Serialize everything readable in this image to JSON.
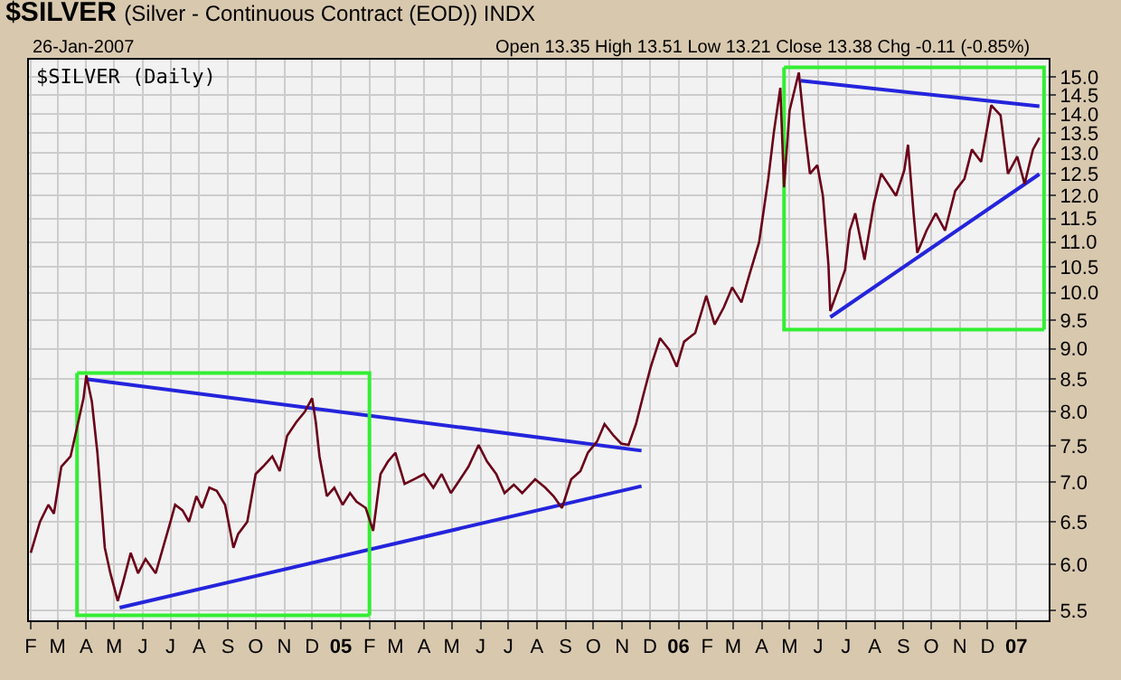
{
  "chart_data": {
    "type": "line",
    "title": "$SILVER",
    "subtitle": "(Silver - Continuous Contract (EOD)) INDX",
    "annotations": [
      "26-Jan-2007",
      "Open 13.35 High 13.51 Low 13.21 Close 13.38 Chg -0.11 (-0.85%)",
      "$SILVER (Daily)"
    ],
    "xlim": [
      "2004-01-30",
      "2007-02-05"
    ],
    "xticks": [
      {
        "value": "2004-02-01",
        "label": "F"
      },
      {
        "value": "2004-03-01",
        "label": "M"
      },
      {
        "value": "2004-04-01",
        "label": "A"
      },
      {
        "value": "2004-05-01",
        "label": "M"
      },
      {
        "value": "2004-06-01",
        "label": "J"
      },
      {
        "value": "2004-07-01",
        "label": "J"
      },
      {
        "value": "2004-08-01",
        "label": "A"
      },
      {
        "value": "2004-09-01",
        "label": "S"
      },
      {
        "value": "2004-10-01",
        "label": "O"
      },
      {
        "value": "2004-11-01",
        "label": "N"
      },
      {
        "value": "2004-12-01",
        "label": "D"
      },
      {
        "value": "2005-01-01",
        "label": "05"
      },
      {
        "value": "2005-02-01",
        "label": "F"
      },
      {
        "value": "2005-03-01",
        "label": "M"
      },
      {
        "value": "2005-04-01",
        "label": "A"
      },
      {
        "value": "2005-05-01",
        "label": "M"
      },
      {
        "value": "2005-06-01",
        "label": "J"
      },
      {
        "value": "2005-07-01",
        "label": "J"
      },
      {
        "value": "2005-08-01",
        "label": "A"
      },
      {
        "value": "2005-09-01",
        "label": "S"
      },
      {
        "value": "2005-10-01",
        "label": "O"
      },
      {
        "value": "2005-11-01",
        "label": "N"
      },
      {
        "value": "2005-12-01",
        "label": "D"
      },
      {
        "value": "2006-01-01",
        "label": "06"
      },
      {
        "value": "2006-02-01",
        "label": "F"
      },
      {
        "value": "2006-03-01",
        "label": "M"
      },
      {
        "value": "2006-04-01",
        "label": "A"
      },
      {
        "value": "2006-05-01",
        "label": "M"
      },
      {
        "value": "2006-06-01",
        "label": "J"
      },
      {
        "value": "2006-07-01",
        "label": "J"
      },
      {
        "value": "2006-08-01",
        "label": "A"
      },
      {
        "value": "2006-09-01",
        "label": "S"
      },
      {
        "value": "2006-10-01",
        "label": "O"
      },
      {
        "value": "2006-11-01",
        "label": "N"
      },
      {
        "value": "2006-12-01",
        "label": "D"
      },
      {
        "value": "2007-01-01",
        "label": "07"
      }
    ],
    "ylim": [
      5.4,
      15.5
    ],
    "yticks": [
      {
        "value": 5.5,
        "label": "5.5"
      },
      {
        "value": 6,
        "label": "6.0"
      },
      {
        "value": 6.5,
        "label": "6.5"
      },
      {
        "value": 7,
        "label": "7.0"
      },
      {
        "value": 7.5,
        "label": "7.5"
      },
      {
        "value": 8,
        "label": "8.0"
      },
      {
        "value": 8.5,
        "label": "8.5"
      },
      {
        "value": 9,
        "label": "9.0"
      },
      {
        "value": 9.5,
        "label": "9.5"
      },
      {
        "value": 10,
        "label": "10.0"
      },
      {
        "value": 10.5,
        "label": "10.5"
      },
      {
        "value": 11,
        "label": "11.0"
      },
      {
        "value": 11.5,
        "label": "11.5"
      },
      {
        "value": 12,
        "label": "12.0"
      },
      {
        "value": 12.5,
        "label": "12.5"
      },
      {
        "value": 13,
        "label": "13.0"
      },
      {
        "value": 13.5,
        "label": "13.5"
      },
      {
        "value": 14,
        "label": "14.0"
      },
      {
        "value": 14.5,
        "label": "14.5"
      },
      {
        "value": 15,
        "label": "15.0"
      }
    ],
    "log": "y",
    "grid": true,
    "marker": "none",
    "series": [
      {
        "color": "#6a0018",
        "x": [
          "2004-02-01",
          "2004-02-11",
          "2004-02-20",
          "2004-02-26",
          "2004-03-05",
          "2004-03-15",
          "2004-03-22",
          "2004-03-29",
          "2004-04-01",
          "2004-04-07",
          "2004-04-13",
          "2004-04-21",
          "2004-04-27",
          "2004-05-05",
          "2004-05-11",
          "2004-05-19",
          "2004-05-27",
          "2004-06-04",
          "2004-06-15",
          "2004-07-01",
          "2004-07-06",
          "2004-07-14",
          "2004-07-21",
          "2004-07-29",
          "2004-08-04",
          "2004-08-12",
          "2004-08-20",
          "2004-08-29",
          "2004-09-07",
          "2004-09-12",
          "2004-09-22",
          "2004-10-01",
          "2004-10-09",
          "2004-10-19",
          "2004-10-27",
          "2004-11-04",
          "2004-11-14",
          "2004-11-23",
          "2004-12-01",
          "2004-12-05",
          "2004-12-09",
          "2004-12-17",
          "2004-12-25",
          "2005-01-03",
          "2005-01-11",
          "2005-01-18",
          "2005-01-28",
          "2005-02-05",
          "2005-02-13",
          "2005-02-21",
          "2005-03-01",
          "2005-03-11",
          "2005-03-21",
          "2005-04-01",
          "2005-04-11",
          "2005-04-20",
          "2005-04-30",
          "2005-05-10",
          "2005-05-19",
          "2005-05-30",
          "2005-06-08",
          "2005-06-18",
          "2005-06-27",
          "2005-07-07",
          "2005-07-16",
          "2005-07-30",
          "2005-08-10",
          "2005-08-19",
          "2005-08-28",
          "2005-09-07",
          "2005-09-17",
          "2005-09-25",
          "2005-10-05",
          "2005-10-13",
          "2005-10-23",
          "2005-10-31",
          "2005-11-08",
          "2005-11-16",
          "2005-11-24",
          "2005-12-02",
          "2005-12-12",
          "2005-12-22",
          "2005-12-30",
          "2006-01-07",
          "2006-01-19",
          "2006-01-31",
          "2006-02-09",
          "2006-02-19",
          "2006-02-28",
          "2006-03-10",
          "2006-03-19",
          "2006-03-29",
          "2006-04-08",
          "2006-04-14",
          "2006-04-21",
          "2006-04-25",
          "2006-05-01",
          "2006-05-11",
          "2006-05-17",
          "2006-05-23",
          "2006-05-31",
          "2006-06-06",
          "2006-06-12",
          "2006-06-14",
          "2006-06-22",
          "2006-06-30",
          "2006-07-05",
          "2006-07-11",
          "2006-07-21",
          "2006-07-31",
          "2006-08-08",
          "2006-08-18",
          "2006-08-24",
          "2006-09-02",
          "2006-09-06",
          "2006-09-12",
          "2006-09-16",
          "2006-09-26",
          "2006-10-06",
          "2006-10-16",
          "2006-10-27",
          "2006-11-06",
          "2006-11-14",
          "2006-11-24",
          "2006-12-05",
          "2006-12-15",
          "2006-12-23",
          "2007-01-02",
          "2007-01-10",
          "2007-01-19",
          "2007-01-26"
        ],
        "values": [
          6.13,
          6.5,
          6.71,
          6.6,
          7.21,
          7.35,
          7.76,
          8.2,
          8.56,
          8.15,
          7.4,
          6.19,
          5.9,
          5.6,
          5.81,
          6.13,
          5.9,
          6.06,
          5.9,
          6.5,
          6.71,
          6.64,
          6.5,
          6.82,
          6.67,
          6.93,
          6.89,
          6.71,
          6.19,
          6.35,
          6.5,
          7.11,
          7.21,
          7.35,
          7.15,
          7.64,
          7.84,
          7.99,
          8.2,
          7.84,
          7.35,
          6.82,
          6.93,
          6.71,
          6.86,
          6.75,
          6.67,
          6.39,
          7.11,
          7.28,
          7.4,
          6.98,
          7.04,
          7.11,
          6.93,
          7.11,
          6.86,
          7.04,
          7.21,
          7.51,
          7.28,
          7.11,
          6.86,
          6.97,
          6.86,
          7.04,
          6.93,
          6.82,
          6.67,
          7.04,
          7.15,
          7.4,
          7.56,
          7.81,
          7.64,
          7.53,
          7.51,
          7.81,
          8.25,
          8.7,
          9.18,
          8.98,
          8.7,
          9.12,
          9.27,
          9.94,
          9.42,
          9.73,
          10.1,
          9.82,
          10.37,
          10.99,
          12.39,
          13.52,
          14.7,
          12.19,
          14.09,
          15.13,
          13.65,
          12.51,
          12.71,
          12.0,
          10.54,
          9.66,
          10.04,
          10.44,
          11.24,
          11.61,
          10.64,
          11.81,
          12.51,
          12.19,
          12.0,
          12.59,
          13.21,
          11.61,
          10.78,
          11.24,
          11.61,
          11.24,
          12.11,
          12.39,
          13.09,
          12.79,
          14.23,
          13.96,
          12.51,
          12.92,
          12.27,
          13.09,
          13.38
        ]
      },
      {
        "color": "#2424dc",
        "x": [
          "2004-04-01",
          "2005-11-22"
        ],
        "values": [
          8.5,
          7.43
        ]
      },
      {
        "color": "#2424dc",
        "x": [
          "2004-05-07",
          "2005-11-22"
        ],
        "values": [
          5.53,
          6.95
        ]
      },
      {
        "color": "#2424dc",
        "x": [
          "2006-05-13",
          "2007-01-26"
        ],
        "values": [
          14.9,
          14.2
        ]
      },
      {
        "color": "#2424dc",
        "x": [
          "2006-06-14",
          "2007-01-26"
        ],
        "values": [
          9.55,
          12.5
        ]
      },
      {
        "type": "line",
        "color": "#33ee33",
        "x": [
          "2004-03-22",
          "2005-02-01",
          "2005-02-01"
        ],
        "values": [
          8.6,
          8.6,
          5.45
        ]
      },
      {
        "type": "line",
        "color": "#33ee33",
        "x": [
          "2004-03-22",
          "2004-03-22",
          "2005-02-01"
        ],
        "values": [
          8.6,
          5.45,
          5.45
        ]
      },
      {
        "type": "line",
        "color": "#33ee33",
        "x": [
          "2006-04-25",
          "2007-01-31",
          "2007-01-31"
        ],
        "values": [
          15.28,
          15.28,
          9.33
        ]
      },
      {
        "type": "line",
        "color": "#33ee33",
        "x": [
          "2006-04-25",
          "2006-04-25",
          "2007-01-31"
        ],
        "values": [
          15.28,
          9.33,
          9.33
        ]
      }
    ]
  }
}
